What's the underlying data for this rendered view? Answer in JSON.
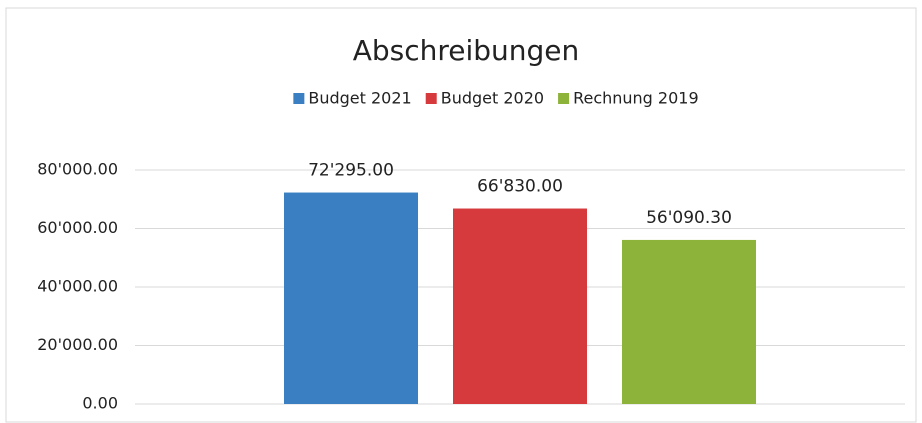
{
  "chart_data": {
    "type": "bar",
    "title": "Abschreibungen",
    "categories": [
      null
    ],
    "series": [
      {
        "name": "Budget 2021",
        "color": "#3a7fc1",
        "values": [
          72295
        ],
        "value_labels": [
          "72'295.00"
        ]
      },
      {
        "name": "Budget 2020",
        "color": "#d63a3c",
        "values": [
          66830
        ],
        "value_labels": [
          "66'830.00"
        ]
      },
      {
        "name": "Rechnung 2019",
        "color": "#8db33a",
        "values": [
          56090.3
        ],
        "value_labels": [
          "56'090.30"
        ]
      }
    ],
    "ylim": [
      0,
      80000
    ],
    "yticks": [
      {
        "value": 0,
        "label": "0.00"
      },
      {
        "value": 20000,
        "label": "20'000.00"
      },
      {
        "value": 40000,
        "label": "40'000.00"
      },
      {
        "value": 60000,
        "label": "60'000.00"
      },
      {
        "value": 80000,
        "label": "80'000.00"
      }
    ],
    "grid": true,
    "legend": "top"
  }
}
